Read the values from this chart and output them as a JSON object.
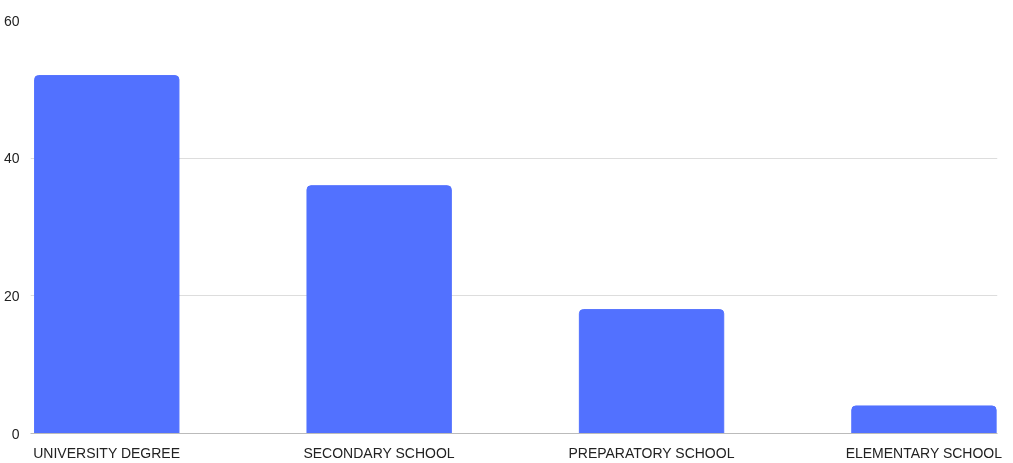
{
  "chart_data": {
    "type": "bar",
    "categories": [
      "UNIVERSITY DEGREE",
      "SECONDARY SCHOOL",
      "PREPARATORY SCHOOL",
      "ELEMENTARY SCHOOL"
    ],
    "values": [
      52,
      36,
      18,
      4
    ],
    "color": "#5271ff",
    "ylim": [
      0,
      60
    ],
    "yticks": [
      0,
      20,
      40,
      60
    ],
    "grid": "y"
  }
}
